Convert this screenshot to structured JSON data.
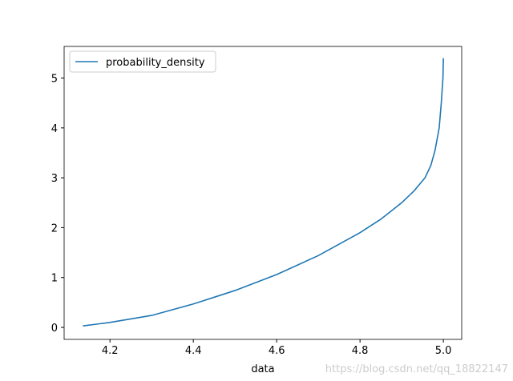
{
  "chart_data": {
    "type": "line",
    "xlabel": "data",
    "x": [
      4.135,
      4.2,
      4.3,
      4.4,
      4.5,
      4.6,
      4.7,
      4.8,
      4.85,
      4.9,
      4.93,
      4.956,
      4.97,
      4.98,
      4.99,
      4.995,
      4.999,
      5.0
    ],
    "series": [
      {
        "name": "probability_density",
        "color": "#1f77b4",
        "values": [
          0.03,
          0.1,
          0.24,
          0.47,
          0.74,
          1.06,
          1.44,
          1.9,
          2.17,
          2.5,
          2.74,
          3.0,
          3.25,
          3.55,
          4.0,
          4.5,
          5.0,
          5.4
        ]
      }
    ],
    "xlim": [
      4.09,
      5.044
    ],
    "ylim": [
      -0.24,
      5.634
    ],
    "xticks": [
      4.2,
      4.4,
      4.6,
      4.8,
      {
        "value": 5.0,
        "label": "5.0"
      }
    ],
    "yticks": [
      0,
      1,
      2,
      3,
      4,
      5
    ],
    "grid": false,
    "legend": "upper-left",
    "watermark": "https://blog.csdn.net/qq_18822147"
  }
}
